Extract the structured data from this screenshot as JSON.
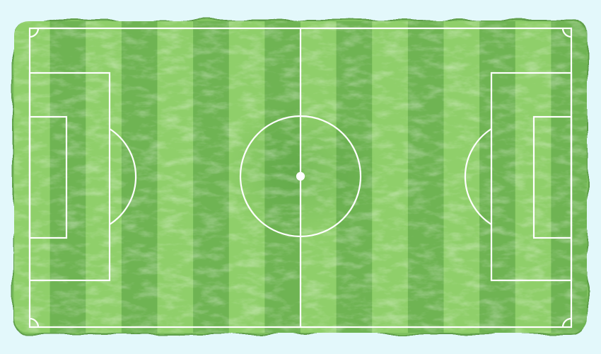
{
  "colors": {
    "background": "#e3f8fb",
    "grass_light": "#8fcf6a",
    "grass_dark": "#6fb453",
    "grass_mid": "#7fc15f",
    "line": "#ffffff",
    "edge_shadow": "#5e9e48"
  },
  "pitch": {
    "stripe_count": 16,
    "orientation": "horizontal",
    "center_spot": true,
    "corner_arcs": 4
  }
}
